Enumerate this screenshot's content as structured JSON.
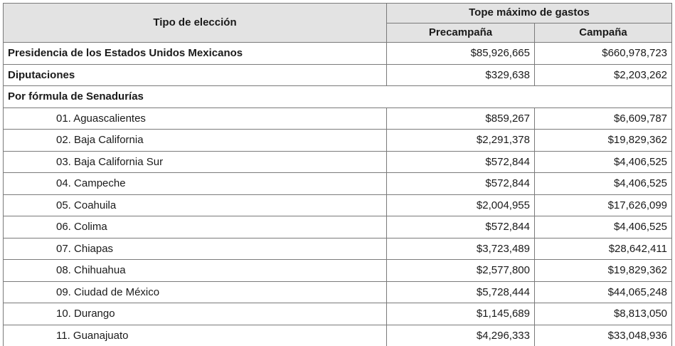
{
  "table": {
    "header": {
      "type_col": "Tipo de elección",
      "group_col": "Tope máximo de gastos",
      "precampana": "Precampaña",
      "campana": "Campaña"
    },
    "top_rows": [
      {
        "label": "Presidencia de los Estados Unidos Mexicanos",
        "precampana": "$85,926,665",
        "campana": "$660,978,723"
      },
      {
        "label": "Diputaciones",
        "precampana": "$329,638",
        "campana": "$2,203,262"
      }
    ],
    "senate_group_label": "Por fórmula de Senadurías",
    "states": [
      {
        "label": "01. Aguascalientes",
        "precampana": "$859,267",
        "campana": "$6,609,787"
      },
      {
        "label": "02. Baja California",
        "precampana": "$2,291,378",
        "campana": "$19,829,362"
      },
      {
        "label": "03. Baja California Sur",
        "precampana": "$572,844",
        "campana": "$4,406,525"
      },
      {
        "label": "04. Campeche",
        "precampana": "$572,844",
        "campana": "$4,406,525"
      },
      {
        "label": "05. Coahuila",
        "precampana": "$2,004,955",
        "campana": "$17,626,099"
      },
      {
        "label": "06. Colima",
        "precampana": "$572,844",
        "campana": "$4,406,525"
      },
      {
        "label": "07. Chiapas",
        "precampana": "$3,723,489",
        "campana": "$28,642,411"
      },
      {
        "label": "08. Chihuahua",
        "precampana": "$2,577,800",
        "campana": "$19,829,362"
      },
      {
        "label": "09. Ciudad de México",
        "precampana": "$5,728,444",
        "campana": "$44,065,248"
      },
      {
        "label": "10. Durango",
        "precampana": "$1,145,689",
        "campana": "$8,813,050"
      }
    ],
    "cutoff_row": {
      "label": "11. Guanajuato",
      "precampana": "$4,296,333",
      "campana": "$33,048,936"
    }
  }
}
